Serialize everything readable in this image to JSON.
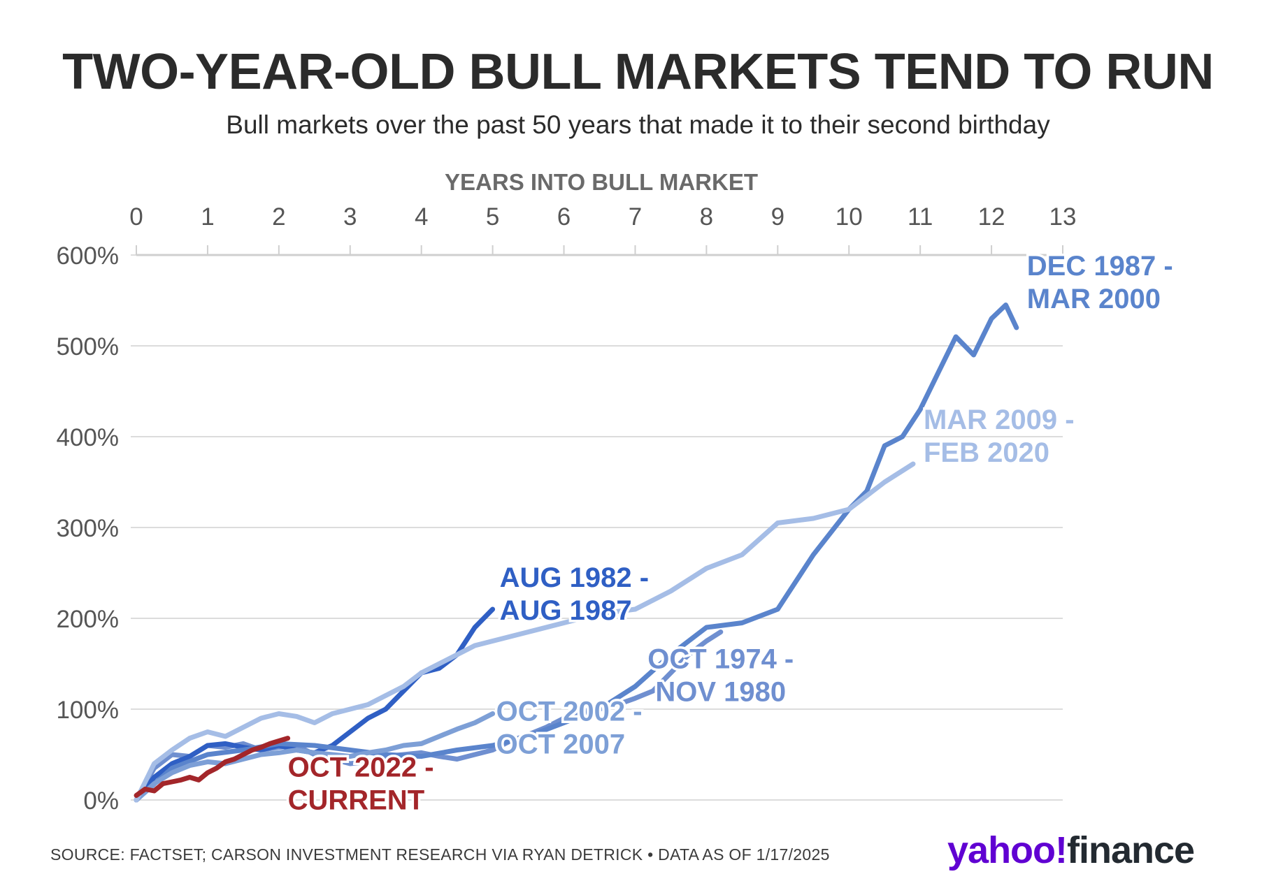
{
  "chart_data": {
    "type": "line",
    "title": "TWO-YEAR-OLD BULL MARKETS TEND TO RUN",
    "subtitle": "Bull markets over the past 50 years that made it to their second birthday",
    "xlabel": "YEARS INTO BULL MARKET",
    "ylabel": "",
    "xlim": [
      0,
      13
    ],
    "ylim": [
      0,
      600
    ],
    "x_ticks": [
      0,
      1,
      2,
      3,
      4,
      5,
      6,
      7,
      8,
      9,
      10,
      11,
      12,
      13
    ],
    "y_tick_values": [
      0,
      100,
      200,
      300,
      400,
      500,
      600
    ],
    "y_tick_labels": [
      "0%",
      "100%",
      "200%",
      "300%",
      "400%",
      "500%",
      "600%"
    ],
    "grid": true,
    "x_axis_position": "top",
    "series": [
      {
        "name": "OCT 1974 - NOV 1980",
        "label_lines": [
          "OCT 1974 -",
          "NOV 1980"
        ],
        "color": "#6f8fd0",
        "x": [
          0,
          0.25,
          0.5,
          0.75,
          1.0,
          1.25,
          1.5,
          1.75,
          2.0,
          2.25,
          2.5,
          2.75,
          3.0,
          3.25,
          3.5,
          3.75,
          4.0,
          4.25,
          4.5,
          4.75,
          5.0,
          5.25,
          5.5,
          5.75,
          6.0,
          6.25,
          6.5,
          6.75,
          7.0,
          7.25,
          7.5,
          7.75,
          8.0,
          8.2
        ],
        "y": [
          0,
          35,
          50,
          48,
          60,
          58,
          62,
          55,
          58,
          60,
          50,
          45,
          40,
          42,
          48,
          50,
          52,
          48,
          45,
          50,
          55,
          65,
          72,
          80,
          90,
          98,
          100,
          105,
          112,
          120,
          140,
          160,
          175,
          185
        ]
      },
      {
        "name": "AUG 1982 - AUG 1987",
        "label_lines": [
          "AUG 1982 -",
          "AUG 1987"
        ],
        "color": "#2f5fc4",
        "x": [
          0,
          0.25,
          0.5,
          0.75,
          1.0,
          1.25,
          1.5,
          1.75,
          2.0,
          2.25,
          2.5,
          2.75,
          3.0,
          3.25,
          3.5,
          3.75,
          4.0,
          4.25,
          4.5,
          4.75,
          5.0
        ],
        "y": [
          0,
          25,
          40,
          48,
          60,
          62,
          58,
          55,
          60,
          55,
          52,
          60,
          75,
          90,
          100,
          120,
          140,
          145,
          160,
          190,
          210
        ]
      },
      {
        "name": "DEC 1987 - MAR 2000",
        "label_lines": [
          "DEC 1987 -",
          "MAR 2000"
        ],
        "color": "#5a84cc",
        "x": [
          0,
          0.5,
          1.0,
          1.5,
          2.0,
          2.5,
          3.0,
          3.5,
          4.0,
          4.5,
          5.0,
          5.5,
          6.0,
          6.5,
          7.0,
          7.5,
          8.0,
          8.5,
          9.0,
          9.5,
          10.0,
          10.25,
          10.5,
          10.75,
          11.0,
          11.25,
          11.5,
          11.75,
          12.0,
          12.2,
          12.35
        ],
        "y": [
          0,
          35,
          50,
          55,
          62,
          60,
          55,
          50,
          48,
          55,
          60,
          70,
          85,
          100,
          125,
          160,
          190,
          195,
          210,
          270,
          320,
          340,
          390,
          400,
          430,
          470,
          510,
          490,
          530,
          545,
          520
        ]
      },
      {
        "name": "OCT 2002 - OCT 2007",
        "label_lines": [
          "OCT 2002 -",
          "OCT 2007"
        ],
        "color": "#7d9fd6",
        "x": [
          0,
          0.25,
          0.5,
          0.75,
          1.0,
          1.25,
          1.5,
          1.75,
          2.0,
          2.25,
          2.5,
          2.75,
          3.0,
          3.25,
          3.5,
          3.75,
          4.0,
          4.25,
          4.5,
          4.75,
          5.0
        ],
        "y": [
          0,
          18,
          30,
          38,
          42,
          40,
          45,
          50,
          52,
          55,
          52,
          50,
          48,
          52,
          55,
          60,
          62,
          70,
          78,
          85,
          95
        ]
      },
      {
        "name": "MAR 2009 - FEB 2020",
        "label_lines": [
          "MAR 2009 -",
          "FEB 2020"
        ],
        "color": "#a5bde6",
        "x": [
          0,
          0.25,
          0.5,
          0.75,
          1.0,
          1.25,
          1.5,
          1.75,
          2.0,
          2.25,
          2.5,
          2.75,
          3.0,
          3.25,
          3.5,
          3.75,
          4.0,
          4.25,
          4.5,
          4.75,
          5.0,
          5.5,
          6.0,
          6.5,
          7.0,
          7.5,
          8.0,
          8.5,
          9.0,
          9.5,
          10.0,
          10.5,
          10.9
        ],
        "y": [
          0,
          40,
          55,
          68,
          75,
          70,
          80,
          90,
          95,
          92,
          85,
          95,
          100,
          105,
          115,
          125,
          140,
          150,
          160,
          170,
          175,
          185,
          195,
          205,
          210,
          230,
          255,
          270,
          305,
          310,
          320,
          350,
          370
        ]
      },
      {
        "name": "OCT 2022 - CURRENT",
        "label_lines": [
          "OCT 2022 -",
          "CURRENT"
        ],
        "color": "#a3262a",
        "x": [
          0,
          0.125,
          0.25,
          0.375,
          0.5,
          0.625,
          0.75,
          0.875,
          1.0,
          1.125,
          1.25,
          1.375,
          1.5,
          1.625,
          1.75,
          1.875,
          2.0,
          2.125
        ],
        "y": [
          5,
          12,
          10,
          18,
          20,
          22,
          25,
          22,
          30,
          35,
          42,
          45,
          50,
          55,
          58,
          62,
          65,
          68
        ]
      }
    ],
    "source": "SOURCE: FACTSET; CARSON INVESTMENT RESEARCH VIA RYAN DETRICK • DATA AS OF 1/17/2025",
    "brand": {
      "part1": "yahoo!",
      "part2": "finance"
    }
  }
}
